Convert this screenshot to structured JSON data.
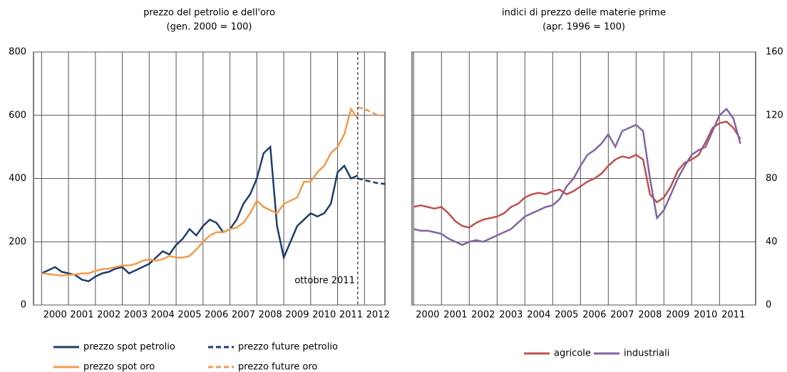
{
  "chart_data": [
    {
      "type": "line",
      "title": "prezzo del petrolio e dell'oro",
      "subtitle": "(gen. 2000 = 100)",
      "x": [
        2000,
        2000.25,
        2000.5,
        2000.75,
        2001,
        2001.25,
        2001.5,
        2001.75,
        2002,
        2002.25,
        2002.5,
        2002.75,
        2003,
        2003.25,
        2003.5,
        2003.75,
        2004,
        2004.25,
        2004.5,
        2004.75,
        2005,
        2005.25,
        2005.5,
        2005.75,
        2006,
        2006.25,
        2006.5,
        2006.75,
        2007,
        2007.25,
        2007.5,
        2007.75,
        2008,
        2008.25,
        2008.5,
        2008.75,
        2009,
        2009.25,
        2009.5,
        2009.75,
        2010,
        2010.25,
        2010.5,
        2010.75,
        2011,
        2011.25,
        2011.5,
        2011.75
      ],
      "xlim": [
        1999.7,
        2012.76
      ],
      "xticks": [
        2000,
        2001,
        2002,
        2003,
        2004,
        2005,
        2006,
        2007,
        2008,
        2009,
        2010,
        2011,
        2012
      ],
      "ylim": [
        0,
        800
      ],
      "yticks": [
        0,
        200,
        400,
        600,
        800
      ],
      "yaxis_position": "left",
      "grid": true,
      "annotation": "ottobre 2011",
      "series": [
        {
          "name": "prezzo spot petrolio",
          "color": "#1f3d6e",
          "dash": false,
          "values": [
            100,
            110,
            120,
            105,
            100,
            95,
            80,
            75,
            90,
            100,
            105,
            115,
            120,
            100,
            110,
            120,
            130,
            150,
            170,
            160,
            190,
            210,
            240,
            220,
            250,
            270,
            260,
            230,
            240,
            270,
            320,
            350,
            400,
            480,
            500,
            250,
            150,
            200,
            250,
            270,
            290,
            280,
            290,
            320,
            420,
            440,
            400,
            410
          ]
        },
        {
          "name": "prezzo future petrolio",
          "color": "#1f3d6e",
          "dash": true,
          "x": [
            2011.75,
            2012,
            2012.25,
            2012.5,
            2012.75
          ],
          "values": [
            400,
            395,
            390,
            385,
            383
          ]
        },
        {
          "name": "prezzo spot oro",
          "color": "#f39a4c",
          "dash": false,
          "values": [
            100,
            98,
            95,
            93,
            95,
            97,
            100,
            100,
            108,
            113,
            115,
            120,
            125,
            125,
            130,
            140,
            145,
            140,
            145,
            155,
            150,
            150,
            155,
            175,
            200,
            220,
            230,
            230,
            240,
            245,
            260,
            290,
            330,
            310,
            300,
            290,
            320,
            330,
            340,
            390,
            390,
            420,
            440,
            480,
            500,
            540,
            620,
            590
          ]
        },
        {
          "name": "prezzo future oro",
          "color": "#f39a4c",
          "dash": true,
          "x": [
            2011.75,
            2012,
            2012.25,
            2012.5,
            2012.75
          ],
          "values": [
            625,
            620,
            610,
            600,
            600
          ]
        }
      ]
    },
    {
      "type": "line",
      "title": "indici di prezzo delle materie  prime",
      "subtitle": "(apr. 1996 = 100)",
      "x": [
        2000,
        2000.25,
        2000.5,
        2000.75,
        2001,
        2001.25,
        2001.5,
        2001.75,
        2002,
        2002.25,
        2002.5,
        2002.75,
        2003,
        2003.25,
        2003.5,
        2003.75,
        2004,
        2004.25,
        2004.5,
        2004.75,
        2005,
        2005.25,
        2005.5,
        2005.75,
        2006,
        2006.25,
        2006.5,
        2006.75,
        2007,
        2007.25,
        2007.5,
        2007.75,
        2008,
        2008.25,
        2008.5,
        2008.75,
        2009,
        2009.25,
        2009.5,
        2009.75,
        2010,
        2010.25,
        2010.5,
        2010.75,
        2011,
        2011.25,
        2011.5,
        2011.75
      ],
      "xlim": [
        1999.94,
        2012.3
      ],
      "xticks": [
        2000,
        2001,
        2002,
        2003,
        2004,
        2005,
        2006,
        2007,
        2008,
        2009,
        2010,
        2011
      ],
      "ylim": [
        0,
        160
      ],
      "yticks": [
        0,
        40,
        80,
        120,
        160
      ],
      "yaxis_position": "right",
      "grid": true,
      "series": [
        {
          "name": "agricole",
          "color": "#c0504d",
          "dash": false,
          "values": [
            62,
            63,
            62,
            61,
            62,
            58,
            53,
            50,
            49,
            52,
            54,
            55,
            56,
            58,
            62,
            64,
            68,
            70,
            71,
            70,
            72,
            73,
            70,
            72,
            75,
            78,
            80,
            83,
            88,
            92,
            94,
            93,
            95,
            92,
            70,
            65,
            68,
            75,
            85,
            90,
            92,
            95,
            103,
            112,
            115,
            116,
            112,
            105
          ]
        },
        {
          "name": "industriali",
          "color": "#8064a2",
          "dash": false,
          "values": [
            48,
            47,
            47,
            46,
            45,
            42,
            40,
            38,
            40,
            41,
            40,
            42,
            44,
            46,
            48,
            52,
            56,
            58,
            60,
            62,
            63,
            67,
            75,
            80,
            88,
            95,
            98,
            102,
            108,
            100,
            110,
            112,
            114,
            110,
            80,
            55,
            60,
            70,
            80,
            88,
            95,
            98,
            100,
            110,
            120,
            124,
            118,
            102
          ]
        }
      ]
    }
  ]
}
